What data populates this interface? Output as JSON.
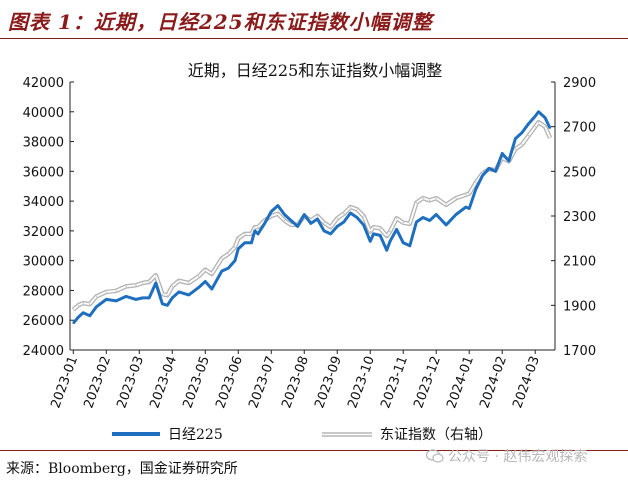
{
  "figure": {
    "title": "图表 1：近期，日经225和东证指数小幅调整",
    "source": "来源：Bloomberg，国金证券研究所",
    "watermark": "公众号 · 赵伟宏观探索"
  },
  "chart_data": {
    "type": "line",
    "title": "近期，日经225和东证指数小幅调整",
    "categories": [
      "2023-01",
      "2023-02",
      "2023-03",
      "2023-04",
      "2023-05",
      "2023-06",
      "2023-07",
      "2023-08",
      "2023-09",
      "2023-10",
      "2023-11",
      "2023-12",
      "2024-01",
      "2024-02",
      "2024-03"
    ],
    "y_left": {
      "ylim": [
        24000,
        42000
      ],
      "ticks": [
        24000,
        26000,
        28000,
        30000,
        32000,
        34000,
        36000,
        38000,
        40000,
        42000
      ]
    },
    "y_right": {
      "ylim": [
        1700,
        2900
      ],
      "ticks": [
        1700,
        1900,
        2100,
        2300,
        2500,
        2700,
        2900
      ]
    },
    "grid": false,
    "legend_position": "bottom",
    "series": [
      {
        "name": "日经225",
        "axis": "left",
        "color": "#1f6fc0",
        "x": [
          0.0,
          0.15,
          0.3,
          0.5,
          0.7,
          1.0,
          1.3,
          1.6,
          1.9,
          2.1,
          2.3,
          2.5,
          2.7,
          2.85,
          3.0,
          3.2,
          3.5,
          3.8,
          4.0,
          4.2,
          4.5,
          4.7,
          4.9,
          5.0,
          5.2,
          5.4,
          5.5,
          5.6,
          5.8,
          6.0,
          6.2,
          6.4,
          6.6,
          6.8,
          7.0,
          7.2,
          7.4,
          7.6,
          7.8,
          8.0,
          8.2,
          8.4,
          8.6,
          8.8,
          9.0,
          9.1,
          9.3,
          9.5,
          9.6,
          9.8,
          10.0,
          10.2,
          10.4,
          10.6,
          10.8,
          11.0,
          11.3,
          11.6,
          11.9,
          12.0,
          12.2,
          12.4,
          12.6,
          12.8,
          13.0,
          13.2,
          13.4,
          13.6,
          13.8,
          14.0,
          14.1,
          14.3,
          14.45
        ],
        "values": [
          25800,
          26200,
          26500,
          26300,
          26900,
          27400,
          27300,
          27600,
          27400,
          27500,
          27500,
          28500,
          27100,
          27000,
          27500,
          27900,
          27700,
          28200,
          28600,
          28100,
          29300,
          29500,
          30000,
          30800,
          31200,
          31200,
          32000,
          31800,
          32500,
          33300,
          33700,
          33100,
          32700,
          32300,
          33100,
          32500,
          32800,
          32000,
          31800,
          32300,
          32600,
          33200,
          32900,
          32400,
          31300,
          31800,
          31700,
          30700,
          31300,
          32100,
          31200,
          31000,
          32600,
          32900,
          32700,
          33100,
          32400,
          33100,
          33600,
          33500,
          34800,
          35700,
          36200,
          36000,
          37200,
          36700,
          38200,
          38600,
          39200,
          39700,
          40000,
          39600,
          38900
        ]
      },
      {
        "name": "东证指数（右轴）",
        "axis": "right",
        "color": "#b5b5b5",
        "x": [
          0.0,
          0.15,
          0.3,
          0.5,
          0.7,
          1.0,
          1.3,
          1.6,
          1.9,
          2.1,
          2.3,
          2.5,
          2.7,
          2.85,
          3.0,
          3.2,
          3.5,
          3.8,
          4.0,
          4.2,
          4.5,
          4.7,
          4.9,
          5.0,
          5.2,
          5.4,
          5.5,
          5.6,
          5.8,
          6.0,
          6.2,
          6.4,
          6.6,
          6.8,
          7.0,
          7.2,
          7.4,
          7.6,
          7.8,
          8.0,
          8.2,
          8.4,
          8.6,
          8.8,
          9.0,
          9.1,
          9.3,
          9.5,
          9.6,
          9.8,
          10.0,
          10.2,
          10.4,
          10.6,
          10.8,
          11.0,
          11.3,
          11.6,
          11.9,
          12.0,
          12.2,
          12.4,
          12.6,
          12.8,
          13.0,
          13.2,
          13.4,
          13.6,
          13.8,
          14.0,
          14.1,
          14.3,
          14.45
        ],
        "values": [
          1880,
          1900,
          1910,
          1905,
          1940,
          1960,
          1965,
          1985,
          1990,
          2000,
          2005,
          2035,
          1950,
          1945,
          1985,
          2010,
          2000,
          2030,
          2060,
          2040,
          2110,
          2130,
          2160,
          2200,
          2220,
          2220,
          2250,
          2250,
          2280,
          2300,
          2310,
          2280,
          2260,
          2260,
          2300,
          2280,
          2300,
          2270,
          2250,
          2290,
          2310,
          2340,
          2330,
          2300,
          2230,
          2250,
          2245,
          2210,
          2230,
          2290,
          2270,
          2265,
          2360,
          2380,
          2370,
          2380,
          2350,
          2380,
          2395,
          2400,
          2450,
          2490,
          2510,
          2505,
          2560,
          2545,
          2600,
          2620,
          2660,
          2700,
          2720,
          2700,
          2650
        ]
      }
    ]
  }
}
